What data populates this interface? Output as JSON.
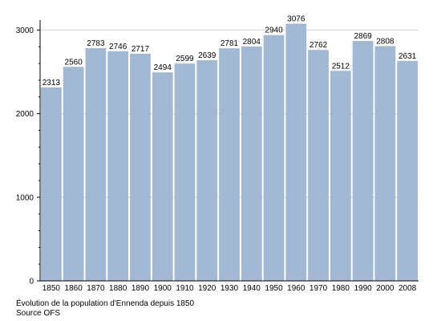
{
  "chart_data": {
    "type": "bar",
    "categories": [
      "1850",
      "1860",
      "1870",
      "1880",
      "1890",
      "1900",
      "1910",
      "1920",
      "1930",
      "1940",
      "1950",
      "1960",
      "1970",
      "1980",
      "1990",
      "2000",
      "2008"
    ],
    "values": [
      2313,
      2560,
      2783,
      2746,
      2717,
      2494,
      2599,
      2639,
      2781,
      2804,
      2940,
      3076,
      2762,
      2512,
      2869,
      2808,
      2631
    ],
    "yticks": [
      0,
      1000,
      2000,
      3000
    ],
    "ylim": [
      0,
      3100
    ],
    "grid": true,
    "bar_color": "#a3b8d2",
    "gridline_color": "#d8d8d8",
    "title": "",
    "xlabel": "",
    "ylabel": ""
  },
  "caption": {
    "line1": "Évolution de la population d'Ennenda depuis 1850",
    "line2": "Source OFS"
  }
}
